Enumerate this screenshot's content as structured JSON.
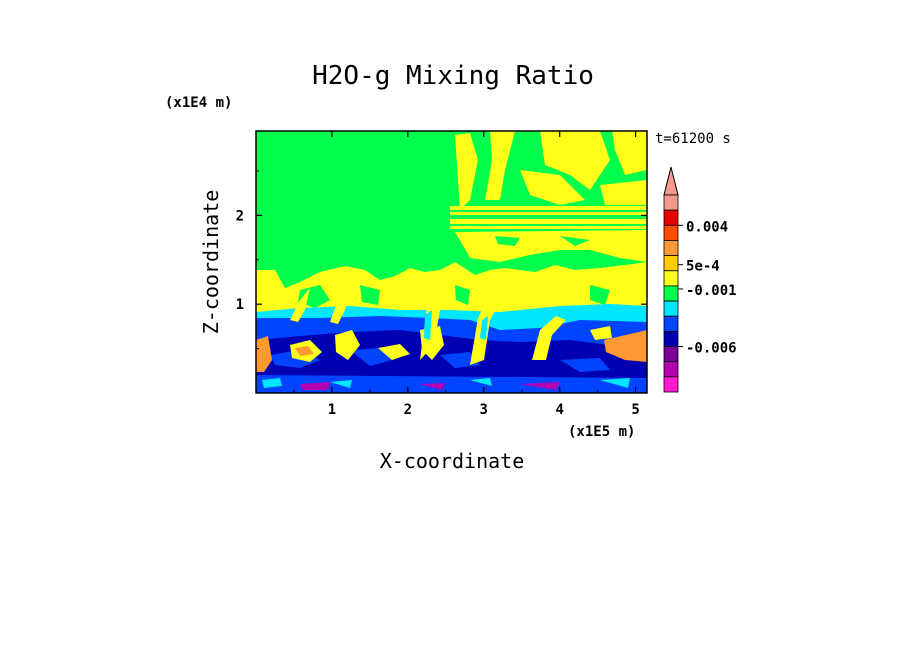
{
  "chart_data": {
    "type": "heatmap",
    "title": "H2O-g Mixing Ratio",
    "xlabel": "X-coordinate",
    "ylabel": "Z-coordinate",
    "x_unit": "(x1E5 m)",
    "y_unit": "(x1E4 m)",
    "time_label": "t=61200 s",
    "x_ticks": [
      "1",
      "2",
      "3",
      "4",
      "5"
    ],
    "y_ticks": [
      "1",
      "2"
    ],
    "xlim": [
      0,
      5.15
    ],
    "ylim": [
      0,
      2.95
    ],
    "colorbar": {
      "tick_labels": [
        "0.004",
        "5e-4",
        "-0.001",
        "-0.006"
      ],
      "tick_values": [
        0.004,
        0.0005,
        -0.001,
        -0.006
      ],
      "colors_top_to_bottom": [
        "#f29a8c",
        "#e60000",
        "#ff4d00",
        "#ff9933",
        "#ffcc00",
        "#ffff1a",
        "#00ff4d",
        "#00e6ff",
        "#0044ff",
        "#0000b3",
        "#7a0099",
        "#b300b3",
        "#ff1ad1"
      ],
      "extend_top_color": "#f29a8c"
    },
    "field_colors": {
      "upper": "#00ff4d",
      "moist": "#ffff1a",
      "orange": "#ff9933",
      "cyan": "#00e6ff",
      "blue": "#0044ff",
      "navy": "#0000b3",
      "magenta": "#b300b3"
    }
  }
}
